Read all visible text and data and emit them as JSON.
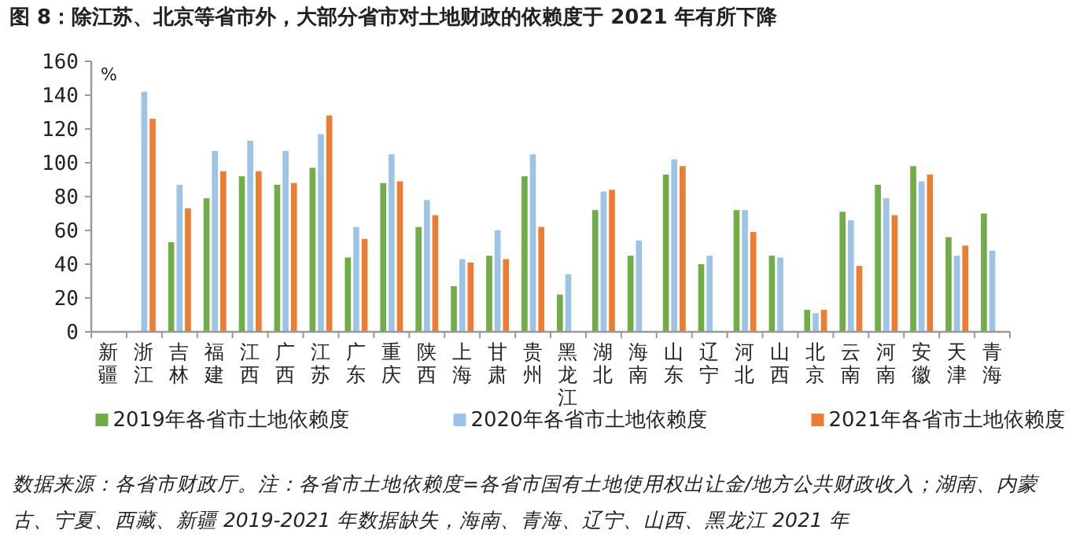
{
  "chart_data": {
    "type": "bar",
    "title": "图 8：除江苏、北京等省市外，大部分省市对土地财政的依赖度于 2021 年有所下降",
    "ylabel": "%",
    "categories": [
      "新疆",
      "浙江",
      "吉林",
      "福建",
      "江西",
      "广西",
      "江苏",
      "广东",
      "重庆",
      "陕西",
      "上海",
      "甘肃",
      "贵州",
      "黑龙江",
      "湖北",
      "海南",
      "山东",
      "辽宁",
      "河北",
      "山西",
      "北京",
      "云南",
      "河南",
      "安徽",
      "天津",
      "青海"
    ],
    "series": [
      {
        "name": "2019年各省市土地依赖度",
        "color": "#70ad47",
        "values": [
          null,
          null,
          53,
          79,
          92,
          87,
          97,
          44,
          88,
          62,
          27,
          45,
          92,
          22,
          72,
          45,
          93,
          40,
          72,
          45,
          13,
          71,
          87,
          98,
          56,
          70
        ]
      },
      {
        "name": "2020年各省市土地依赖度",
        "color": "#9dc3e6",
        "values": [
          null,
          142,
          87,
          107,
          113,
          107,
          117,
          62,
          105,
          78,
          43,
          60,
          105,
          34,
          83,
          54,
          102,
          45,
          72,
          44,
          11,
          66,
          79,
          89,
          45,
          48
        ]
      },
      {
        "name": "2021年各省市土地依赖度",
        "color": "#ed7d31",
        "values": [
          null,
          126,
          73,
          95,
          95,
          88,
          128,
          55,
          89,
          69,
          41,
          43,
          62,
          null,
          84,
          null,
          98,
          null,
          59,
          null,
          13,
          39,
          69,
          93,
          51,
          null
        ]
      }
    ],
    "ylim": [
      0,
      160
    ],
    "yticks": [
      0,
      20,
      40,
      60,
      80,
      100,
      120,
      140,
      160
    ],
    "grid": false,
    "legend": "bottom",
    "annotations": [
      "数据来源：各省市财政厅。注：各省市土地依赖度=各省市国有土地使用权出让金/地方公共财政收入；湖南、内蒙古、宁夏、西藏、新疆 2019-2021 年数据缺失，海南、青海、辽宁、山西、黑龙江 2021 年"
    ]
  }
}
